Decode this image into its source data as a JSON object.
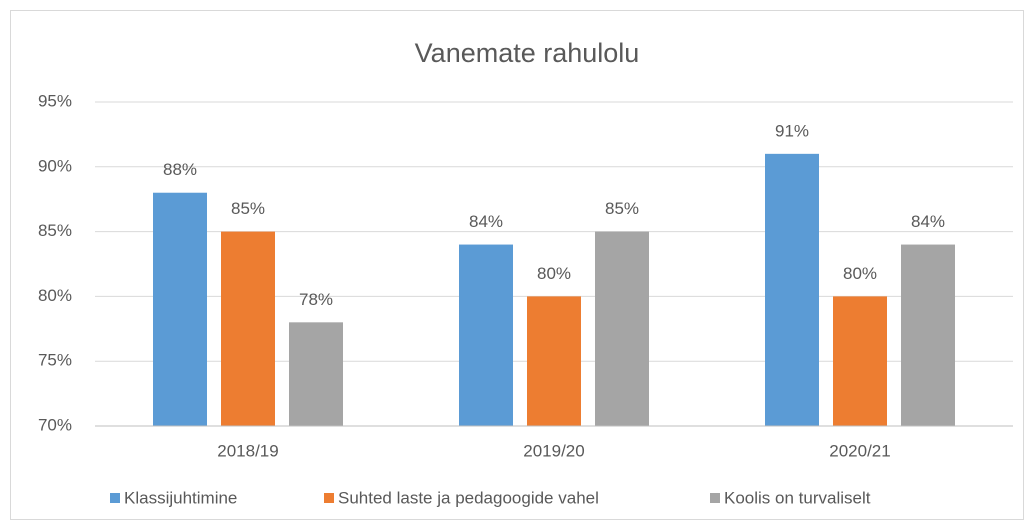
{
  "chart_data": {
    "type": "bar",
    "title": "Vanemate rahulolu",
    "categories": [
      "2018/19",
      "2019/20",
      "2020/21"
    ],
    "series": [
      {
        "name": "Klassijuhtimine",
        "color": "#5b9bd5",
        "values": [
          88,
          84,
          91
        ],
        "value_labels": [
          "88%",
          "84%",
          "91%"
        ]
      },
      {
        "name": "Suhted laste ja pedagoogide vahel",
        "color": "#ed7d31",
        "values": [
          85,
          80,
          80
        ],
        "value_labels": [
          "85%",
          "80%",
          "80%"
        ]
      },
      {
        "name": "Koolis on turvaliselt",
        "color": "#a5a5a5",
        "values": [
          78,
          85,
          84
        ],
        "value_labels": [
          "78%",
          "85%",
          "84%"
        ]
      }
    ],
    "ylim": [
      70,
      95
    ],
    "yticks": [
      {
        "value": 70,
        "label": "70%"
      },
      {
        "value": 75,
        "label": "75%"
      },
      {
        "value": 80,
        "label": "80%"
      },
      {
        "value": 85,
        "label": "85%"
      },
      {
        "value": 90,
        "label": "90%"
      },
      {
        "value": 95,
        "label": "95%"
      }
    ],
    "grid": true,
    "legend": "bottom"
  }
}
